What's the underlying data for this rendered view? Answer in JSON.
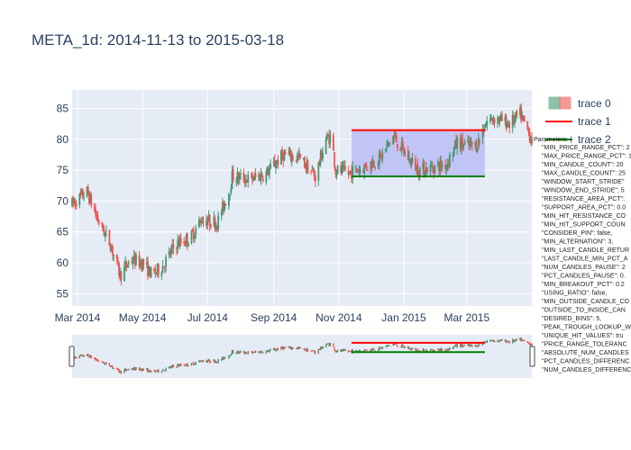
{
  "colors": {
    "increasing": "#3d9970",
    "decreasing": "#ef5350",
    "resistance_line": "#ff0000",
    "support_line": "#008000",
    "band_fill": "#b3b8f5",
    "plot_bg": "#e5ecf6",
    "grid": "#ffffff"
  },
  "chart_data": {
    "type": "candlestick",
    "title": "META_1d: 2014-11-13 to 2015-03-18",
    "xaxis": {
      "range": [
        "2014-02-24",
        "2015-05-01"
      ],
      "ticks": [
        {
          "date": "2014-03-01",
          "label": "Mar 2014"
        },
        {
          "date": "2014-05-01",
          "label": "May 2014"
        },
        {
          "date": "2014-07-01",
          "label": "Jul 2014"
        },
        {
          "date": "2014-09-01",
          "label": "Sep 2014"
        },
        {
          "date": "2014-11-01",
          "label": "Nov 2014"
        },
        {
          "date": "2015-01-01",
          "label": "Jan 2015"
        },
        {
          "date": "2015-03-01",
          "label": "Mar 2015"
        }
      ]
    },
    "yaxis": {
      "range": [
        53,
        88
      ],
      "ticks": [
        55,
        60,
        65,
        70,
        75,
        80,
        85
      ]
    },
    "price_keypoints": [
      [
        "2014-02-24",
        69.5
      ],
      [
        "2014-03-10",
        71.5
      ],
      [
        "2014-03-20",
        67.0
      ],
      [
        "2014-04-01",
        63.0
      ],
      [
        "2014-04-10",
        58.0
      ],
      [
        "2014-04-20",
        60.5
      ],
      [
        "2014-05-01",
        60.0
      ],
      [
        "2014-05-10",
        58.0
      ],
      [
        "2014-05-20",
        59.5
      ],
      [
        "2014-06-01",
        63.0
      ],
      [
        "2014-06-15",
        64.0
      ],
      [
        "2014-06-25",
        67.0
      ],
      [
        "2014-07-10",
        66.5
      ],
      [
        "2014-07-22",
        72.0
      ],
      [
        "2014-07-24",
        74.0
      ],
      [
        "2014-08-10",
        73.5
      ],
      [
        "2014-08-25",
        74.5
      ],
      [
        "2014-09-10",
        77.5
      ],
      [
        "2014-09-25",
        77.0
      ],
      [
        "2014-10-10",
        74.0
      ],
      [
        "2014-10-20",
        80.0
      ],
      [
        "2014-10-25",
        80.5
      ],
      [
        "2014-10-29",
        75.0
      ],
      [
        "2014-11-10",
        74.5
      ],
      [
        "2014-11-25",
        75.5
      ],
      [
        "2014-12-10",
        77.0
      ],
      [
        "2014-12-22",
        80.5
      ],
      [
        "2015-01-05",
        77.0
      ],
      [
        "2015-01-15",
        75.0
      ],
      [
        "2015-01-29",
        75.5
      ],
      [
        "2015-02-10",
        76.0
      ],
      [
        "2015-02-20",
        79.5
      ],
      [
        "2015-03-01",
        79.0
      ],
      [
        "2015-03-10",
        79.0
      ],
      [
        "2015-03-20",
        83.0
      ],
      [
        "2015-03-28",
        83.5
      ],
      [
        "2015-04-10",
        82.5
      ],
      [
        "2015-04-20",
        84.0
      ],
      [
        "2015-05-01",
        80.0
      ]
    ],
    "pattern_band": {
      "x_start": "2014-11-13",
      "x_end": "2015-03-18",
      "resistance": 81.5,
      "support": 74.0
    },
    "legend": [
      {
        "name": "trace 0",
        "kind": "candlestick"
      },
      {
        "name": "trace 1",
        "kind": "line",
        "color": "#ff0000"
      },
      {
        "name": "trace 2",
        "kind": "line",
        "color": "#008000"
      }
    ],
    "parameters_title": "Parameters: {",
    "parameters": [
      "\"MIN_PRICE_RANGE_PCT\": 2",
      "\"MAX_PRICE_RANGE_PCT\": 1",
      "\"MIN_CANDLE_COUNT\": 20",
      "\"MAX_CANDLE_COUNT\": 25",
      "\"WINDOW_START_STRIDE\"",
      "\"WINDOW_END_STRIDE\": 5",
      "\"RESISTANCE_AREA_PCT\":",
      "\"SUPPORT_AREA_PCT\": 0.0",
      "\"MIN_HIT_RESISTANCE_CO",
      "\"MIN_HIT_SUPPORT_COUN",
      "\"CONSIDER_PIN\": false,",
      "\"MIN_ALTERNATION\": 3,",
      "\"MIN_LAST_CANDLE_RETUR",
      "\"LAST_CANDLE_MIN_PCT_A",
      "\"NUM_CANDLES_PAUSE\": 2",
      "\"PCT_CANDLES_PAUSE\": 0.",
      "\"MIN_BREAKOUT_PCT\": 0.2",
      "\"USING_RATIO\": false,",
      "\"MIN_OUTSIDE_CANDLE_CO",
      "\"OUTSIDE_TO_INSIDE_CAN",
      "\"DESIRED_BINS\": 5,",
      "\"PEAK_TROUGH_LOOKUP_W",
      "\"UNIQUE_HIT_VALUES\": tru",
      "\"PRICE_RANGE_TOLERANC",
      "\"ABSOLUTE_NUM_CANDLES",
      "\"PCT_CANDLES_DIFFERENC",
      "\"NUM_CANDLES_DIFFERENC"
    ]
  }
}
